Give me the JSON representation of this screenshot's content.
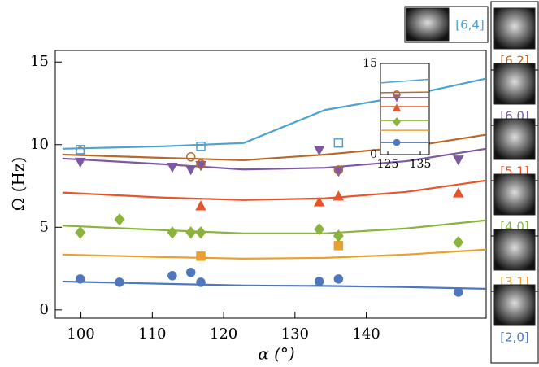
{
  "chart_data": {
    "type": "scatter",
    "x_label": "α (°)",
    "y_label": "Ω (Hz)",
    "xlim": [
      96.4,
      156.8
    ],
    "ylim": [
      -0.5,
      15.7
    ],
    "xticks": [
      100,
      110,
      120,
      130,
      140
    ],
    "yticks": [
      0,
      5,
      10,
      15
    ],
    "fit_x": [
      97.4,
      111.4,
      122.8,
      134.2,
      145.6,
      156.8
    ],
    "series": [
      {
        "name": "[2,0]",
        "color": "#4f77be",
        "marker": "circle",
        "x": [
          99.9,
          105.4,
          112.8,
          115.4,
          116.8,
          133.4,
          136.1,
          152.9
        ],
        "values": [
          1.87,
          1.67,
          2.07,
          2.27,
          1.67,
          1.72,
          1.87,
          1.08
        ],
        "fit": [
          1.72,
          1.58,
          1.48,
          1.45,
          1.38,
          1.28
        ],
        "inset_fit": [
          2.0,
          2.0
        ],
        "inset_point": 2.0
      },
      {
        "name": "[3,1]",
        "color": "#e8a02f",
        "marker": "square",
        "x": [
          116.8,
          136.1
        ],
        "values": [
          3.25,
          3.89
        ],
        "fit": [
          3.35,
          3.2,
          3.1,
          3.15,
          3.35,
          3.65
        ],
        "inset_fit": [
          4.0,
          4.0
        ]
      },
      {
        "name": "[4,0]",
        "color": "#8ab43c",
        "marker": "diamond",
        "x": [
          99.9,
          105.4,
          112.8,
          115.4,
          116.8,
          133.4,
          136.1,
          152.9
        ],
        "values": [
          4.68,
          5.47,
          4.68,
          4.68,
          4.68,
          4.88,
          4.48,
          4.09
        ],
        "fit": [
          5.1,
          4.83,
          4.63,
          4.63,
          4.93,
          5.42
        ],
        "inset_fit": [
          5.6,
          5.6
        ],
        "inset_point": 5.4
      },
      {
        "name": "[5,1]",
        "color": "#e8552a",
        "marker": "triangle-up",
        "x": [
          116.8,
          133.4,
          136.1,
          152.9
        ],
        "values": [
          6.26,
          6.5,
          6.85,
          7.04
        ],
        "fit": [
          7.1,
          6.8,
          6.65,
          6.75,
          7.14,
          7.83
        ],
        "inset_fit": [
          7.9,
          7.9
        ],
        "inset_point": 7.6
      },
      {
        "name": "[6,0]",
        "color": "#7d59a3",
        "marker": "triangle-down",
        "x": [
          99.9,
          112.8,
          115.4,
          116.8,
          133.4,
          136.1,
          152.9
        ],
        "values": [
          8.97,
          8.67,
          8.52,
          8.77,
          9.7,
          8.42,
          9.11
        ],
        "fit": [
          9.16,
          8.82,
          8.5,
          8.6,
          9.0,
          9.75
        ],
        "inset_fit": [
          9.4,
          9.4
        ],
        "inset_point": 9.4
      },
      {
        "name": "[6,2]",
        "color": "#b8692a",
        "marker": "open-circle",
        "x": [
          99.9,
          115.4,
          116.8,
          136.1
        ],
        "values": [
          9.6,
          9.26,
          8.82,
          8.47
        ],
        "fit": [
          9.4,
          9.2,
          9.06,
          9.4,
          9.85,
          10.6
        ],
        "inset_fit": [
          10.2,
          10.3
        ],
        "inset_point": 10.0
      },
      {
        "name": "[6,4]",
        "color": "#4ea2cf",
        "marker": "open-square",
        "x": [
          99.9,
          116.8,
          136.1
        ],
        "values": [
          9.7,
          9.9,
          10.1
        ],
        "fit": [
          9.75,
          9.9,
          10.1,
          12.1,
          12.95,
          14.0
        ],
        "inset_fit": [
          11.8,
          12.4
        ]
      }
    ],
    "inset": {
      "xlim": [
        122.75,
        137.75
      ],
      "ylim": [
        0,
        15
      ],
      "xticks": [
        125,
        135
      ],
      "yticks": [
        0,
        15
      ],
      "fit_x": [
        122.75,
        137.75
      ],
      "point_x": 127.75
    }
  }
}
